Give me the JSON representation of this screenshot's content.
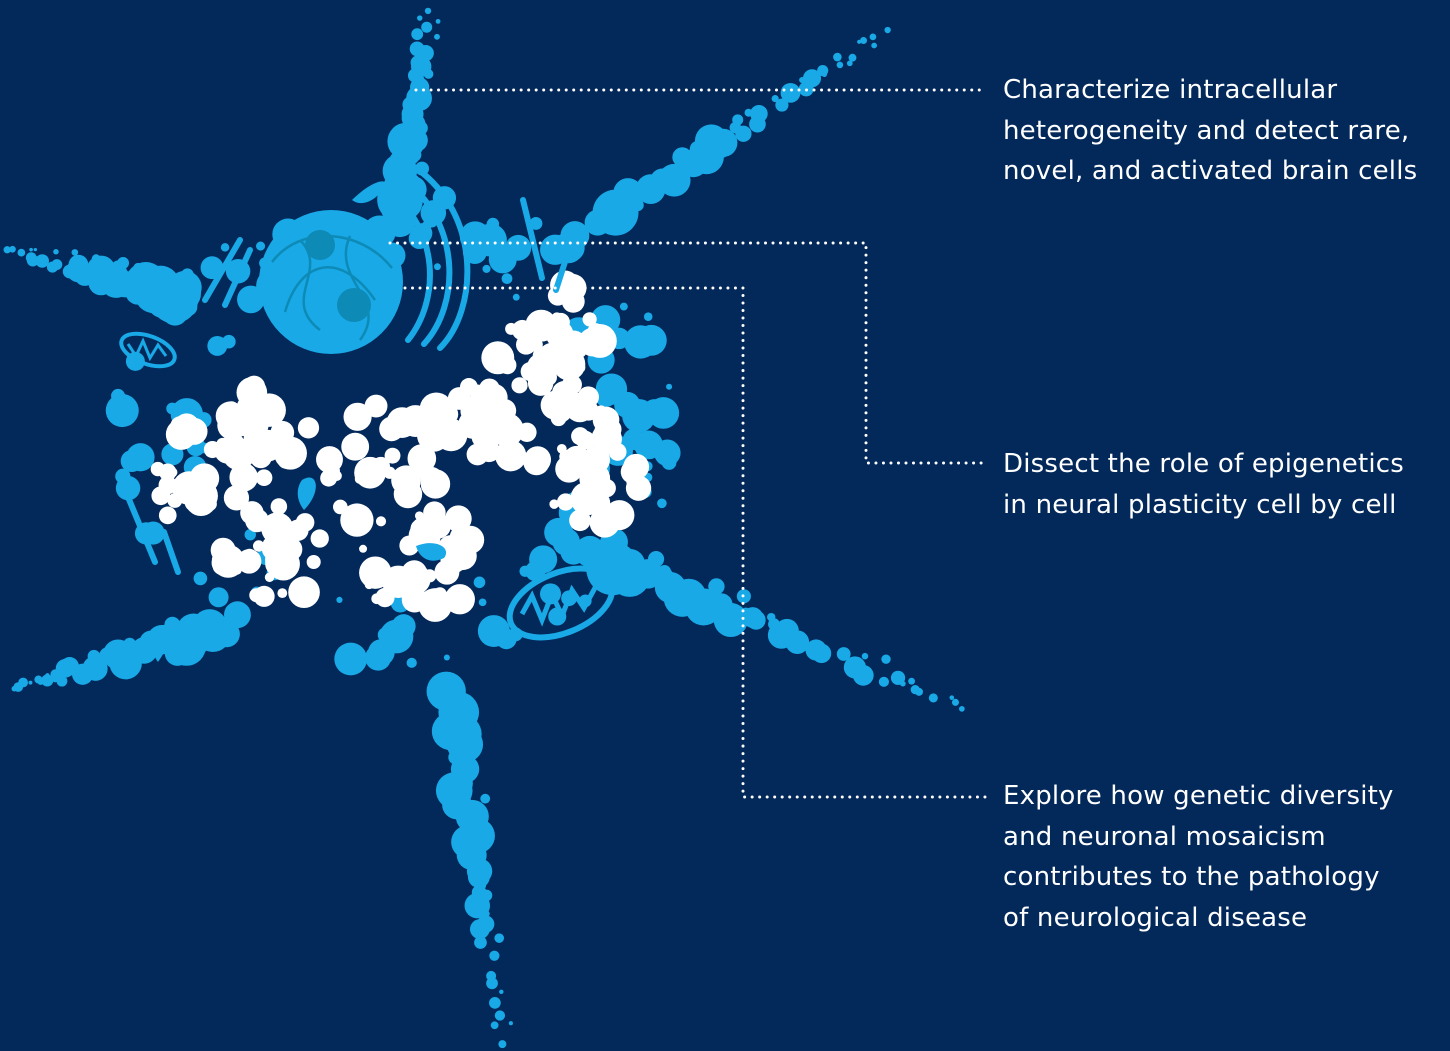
{
  "colors": {
    "background": "#03285a",
    "cell": "#18a9e6",
    "vesicle": "#ffffff",
    "nucleolus": "#0e8ab6",
    "text": "#ffffff"
  },
  "callouts": [
    {
      "text": "Characterize intracellular\nheterogeneity and detect rare,\nnovel, and activated brain cells"
    },
    {
      "text": "Dissect the role of epigenetics\nin neural plasticity cell by cell"
    },
    {
      "text": "Explore how genetic diversity\nand neuronal mosaicism\ncontributes to the pathology\nof neurological disease"
    }
  ]
}
